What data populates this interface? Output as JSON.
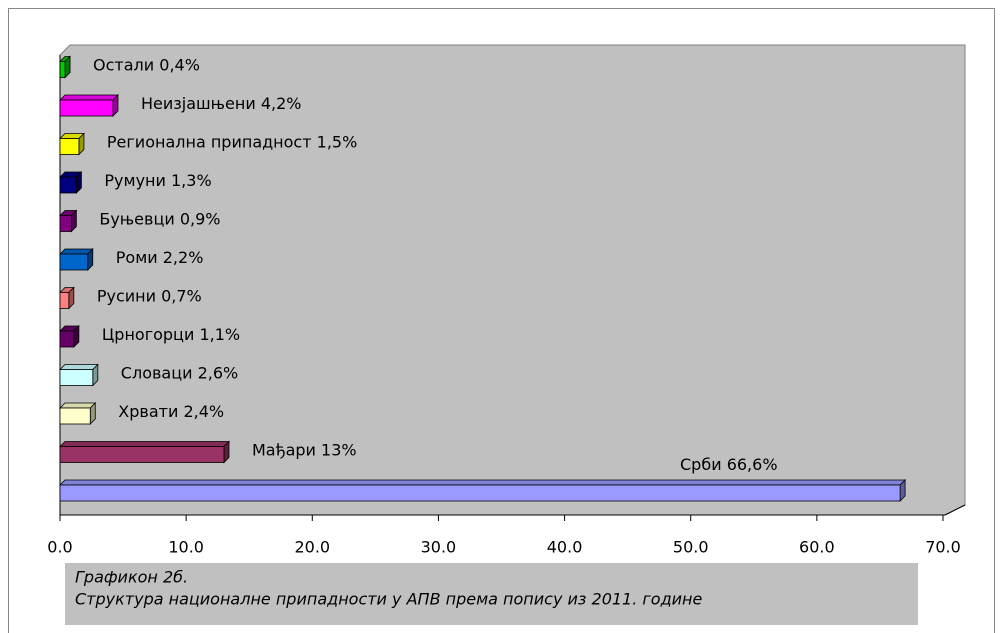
{
  "chart_data": {
    "type": "bar",
    "orientation": "horizontal",
    "categories": [
      "Срби",
      "Мађари",
      "Хрвати",
      "Словаци",
      "Црногорци",
      "Русини",
      "Роми",
      "Буњевци",
      "Румуни",
      "Регионална припадност",
      "Неизјашњени",
      "Остали"
    ],
    "values": [
      66.6,
      13,
      2.4,
      2.6,
      1.1,
      0.7,
      2.2,
      0.9,
      1.3,
      1.5,
      4.2,
      0.4
    ],
    "value_labels": [
      "66,6%",
      "13%",
      "2,4%",
      "2,6%",
      "1,1%",
      "0,7%",
      "2,2%",
      "0,9%",
      "1,3%",
      "1,5%",
      "4,2%",
      "0,4%"
    ],
    "colors": [
      "#9999ff",
      "#993366",
      "#ffffcc",
      "#ccffff",
      "#660066",
      "#ff8080",
      "#0066cc",
      "#800080",
      "#000080",
      "#ffff00",
      "#ff00ff",
      "#00cc00"
    ],
    "xlim": [
      0,
      70
    ],
    "xticks": [
      {
        "value": 0,
        "label": "0.0"
      },
      {
        "value": 10,
        "label": "10.0"
      },
      {
        "value": 20,
        "label": "20.0"
      },
      {
        "value": 30,
        "label": "30.0"
      },
      {
        "value": 40,
        "label": "40.0"
      },
      {
        "value": 50,
        "label": "50.0"
      },
      {
        "value": 60,
        "label": "60.0"
      },
      {
        "value": 70,
        "label": "70.0"
      }
    ],
    "caption_title": "Графикон 2б.",
    "caption": "Структура националне припадности у АПВ према попису из 2011. године"
  }
}
